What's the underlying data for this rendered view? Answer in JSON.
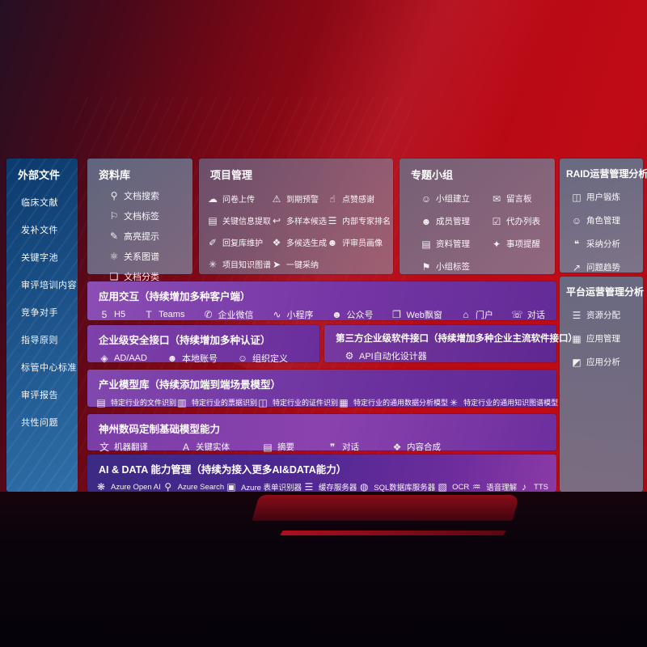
{
  "colors": {
    "bg_red": "#c00b16",
    "sidebar_blue_top": "#0b3a6d",
    "sidebar_blue_bottom": "#2f6ea9",
    "row_purple": "#7436a4",
    "row_indigo": "#3b2a84",
    "panel_slate": "#68748c",
    "text_white": "#ffffff"
  },
  "sidebar": {
    "title": "外部文件",
    "items": [
      "临床文献",
      "发补文件",
      "关键字池",
      "审评培训内容",
      "竞争对手",
      "指导原则",
      "标管中心标准",
      "审评报告",
      "共性问题"
    ]
  },
  "panels": {
    "library": {
      "title": "资料库",
      "items": [
        {
          "icon": "doc-search-icon",
          "label": "文档搜索"
        },
        {
          "icon": "doc-tag-icon",
          "label": "文档标签"
        },
        {
          "icon": "highlight-icon",
          "label": "高亮提示"
        },
        {
          "icon": "relation-graph-icon",
          "label": "关系图谱"
        },
        {
          "icon": "doc-classify-icon",
          "label": "文档分类"
        }
      ]
    },
    "project": {
      "title": "项目管理",
      "items": [
        {
          "icon": "upload-cloud-icon",
          "label": "问卷上传"
        },
        {
          "icon": "due-alert-icon",
          "label": "到期预警"
        },
        {
          "icon": "thumbs-up-icon",
          "label": "点赞感谢"
        },
        {
          "icon": "key-info-extract-icon",
          "label": "关键信息提取"
        },
        {
          "icon": "multi-sample-icon",
          "label": "多样本候选"
        },
        {
          "icon": "expert-ranking-icon",
          "label": "内部专家排名"
        },
        {
          "icon": "reply-maintain-icon",
          "label": "回复库维护"
        },
        {
          "icon": "multi-candidate-icon",
          "label": "多候选生成"
        },
        {
          "icon": "reviewer-portrait-icon",
          "label": "评审员画像"
        },
        {
          "icon": "project-knowledge-graph-icon",
          "label": "项目知识图谱"
        },
        {
          "icon": "one-click-adopt-icon",
          "label": "一键采纳"
        }
      ]
    },
    "topic_group": {
      "title": "专题小组",
      "items": [
        {
          "icon": "group-create-icon",
          "label": "小组建立"
        },
        {
          "icon": "message-board-icon",
          "label": "留言板"
        },
        {
          "icon": "member-manage-icon",
          "label": "成员管理"
        },
        {
          "icon": "todo-list-icon",
          "label": "代办列表"
        },
        {
          "icon": "material-manage-icon",
          "label": "资料管理"
        },
        {
          "icon": "reminder-bell-icon",
          "label": "事项提醒"
        },
        {
          "icon": "group-tag-icon",
          "label": "小组标签"
        }
      ]
    },
    "raid": {
      "title": "RAID运营管理分析",
      "items": [
        {
          "icon": "user-training-icon",
          "label": "用户锻炼"
        },
        {
          "icon": "role-manage-icon",
          "label": "角色管理"
        },
        {
          "icon": "adoption-analysis-icon",
          "label": "采纳分析"
        },
        {
          "icon": "issue-trend-icon",
          "label": "问题趋势"
        }
      ]
    },
    "platform": {
      "title": "平台运营管理分析",
      "items": [
        {
          "icon": "resource-allocation-icon",
          "label": "资源分配"
        },
        {
          "icon": "app-manage-icon",
          "label": "应用管理"
        },
        {
          "icon": "app-analysis-icon",
          "label": "应用分析"
        }
      ]
    }
  },
  "rows": {
    "app_interaction": {
      "title": "应用交互（持续增加多种客户端）",
      "items": [
        {
          "icon": "h5-icon",
          "label": "H5"
        },
        {
          "icon": "teams-icon",
          "label": "Teams"
        },
        {
          "icon": "wecom-icon",
          "label": "企业微信"
        },
        {
          "icon": "miniprogram-icon",
          "label": "小程序"
        },
        {
          "icon": "official-account-icon",
          "label": "公众号"
        },
        {
          "icon": "web-popup-icon",
          "label": "Web飘窗"
        },
        {
          "icon": "portal-icon",
          "label": "门户"
        },
        {
          "icon": "chat-icon",
          "label": "对话"
        }
      ]
    },
    "security": {
      "title": "企业级安全接口（持续增加多种认证）",
      "items": [
        {
          "icon": "ad-aad-icon",
          "label": "AD/AAD"
        },
        {
          "icon": "local-account-icon",
          "label": "本地账号"
        },
        {
          "icon": "org-define-icon",
          "label": "组织定义"
        }
      ]
    },
    "third_party": {
      "title": "第三方企业级软件接口（持续增加多种企业主流软件接口）",
      "items": [
        {
          "icon": "api-designer-icon",
          "label": "API自动化设计器"
        }
      ]
    },
    "industry_models": {
      "title": "产业模型库（持续添加端到端场景模型）",
      "items": [
        {
          "icon": "file-recognition-icon",
          "label": "特定行业的文件识别"
        },
        {
          "icon": "receipt-recognition-icon",
          "label": "特定行业的票据识别"
        },
        {
          "icon": "id-recognition-icon",
          "label": "特定行业的证件识别"
        },
        {
          "icon": "data-analysis-model-icon",
          "label": "特定行业的通用数据分析模型"
        },
        {
          "icon": "knowledge-graph-model-icon",
          "label": "特定行业的通用知识图谱模型"
        }
      ]
    },
    "base_models": {
      "title": "神州数码定制基础模型能力",
      "items": [
        {
          "icon": "machine-translation-icon",
          "label": "机器翻译"
        },
        {
          "icon": "key-entity-icon",
          "label": "关键实体"
        },
        {
          "icon": "summary-icon",
          "label": "摘要"
        },
        {
          "icon": "dialog-icon",
          "label": "对话"
        },
        {
          "icon": "content-synthesis-icon",
          "label": "内容合成"
        }
      ]
    },
    "ai_data": {
      "title": "AI & DATA 能力管理（持续为接入更多AI&DATA能力）",
      "items": [
        {
          "icon": "azure-openai-icon",
          "label": "Azure Open AI"
        },
        {
          "icon": "azure-search-icon",
          "label": "Azure Search"
        },
        {
          "icon": "azure-form-recognizer-icon",
          "label": "Azure 表单识别器"
        },
        {
          "icon": "cache-server-icon",
          "label": "缓存服务器"
        },
        {
          "icon": "sql-database-icon",
          "label": "SQL数据库服务器"
        },
        {
          "icon": "ocr-icon",
          "label": "OCR"
        },
        {
          "icon": "speech-understanding-icon",
          "label": "语音理解"
        },
        {
          "icon": "tts-icon",
          "label": "TTS"
        }
      ]
    }
  },
  "icon_glyphs": {
    "doc-search-icon": "⚲",
    "doc-tag-icon": "⚐",
    "highlight-icon": "✎",
    "relation-graph-icon": "⚛",
    "doc-classify-icon": "❏",
    "upload-cloud-icon": "☁",
    "due-alert-icon": "⚠",
    "thumbs-up-icon": "☝",
    "key-info-extract-icon": "▤",
    "multi-sample-icon": "↩",
    "expert-ranking-icon": "☰",
    "reply-maintain-icon": "✐",
    "multi-candidate-icon": "❖",
    "reviewer-portrait-icon": "☻",
    "project-knowledge-graph-icon": "✳",
    "one-click-adopt-icon": "➤",
    "group-create-icon": "☺",
    "message-board-icon": "✉",
    "member-manage-icon": "☻",
    "todo-list-icon": "☑",
    "material-manage-icon": "▤",
    "reminder-bell-icon": "✦",
    "group-tag-icon": "⚑",
    "user-training-icon": "◫",
    "role-manage-icon": "☺",
    "adoption-analysis-icon": "❝",
    "issue-trend-icon": "↗",
    "resource-allocation-icon": "☰",
    "app-manage-icon": "▦",
    "app-analysis-icon": "◩",
    "h5-icon": "5",
    "teams-icon": "T",
    "wecom-icon": "✆",
    "miniprogram-icon": "∿",
    "official-account-icon": "☻",
    "web-popup-icon": "❐",
    "portal-icon": "⌂",
    "chat-icon": "☏",
    "ad-aad-icon": "◈",
    "local-account-icon": "☻",
    "org-define-icon": "☺",
    "api-designer-icon": "⚙",
    "file-recognition-icon": "▤",
    "receipt-recognition-icon": "▥",
    "id-recognition-icon": "◫",
    "data-analysis-model-icon": "▦",
    "knowledge-graph-model-icon": "✳",
    "machine-translation-icon": "文",
    "key-entity-icon": "A",
    "summary-icon": "▤",
    "dialog-icon": "❞",
    "content-synthesis-icon": "❖",
    "azure-openai-icon": "❋",
    "azure-search-icon": "⚲",
    "azure-form-recognizer-icon": "▣",
    "cache-server-icon": "☰",
    "sql-database-icon": "◍",
    "ocr-icon": "▧",
    "speech-understanding-icon": "♒",
    "tts-icon": "♪"
  }
}
